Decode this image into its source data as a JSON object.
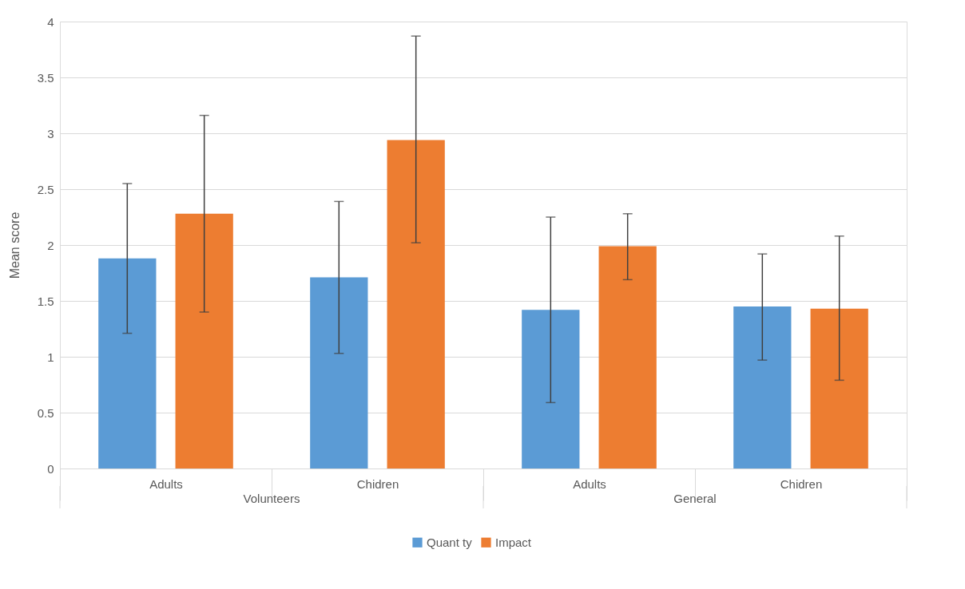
{
  "chart_data": {
    "type": "bar",
    "ylabel": "Mean score",
    "categories": [
      "Adults",
      "Chidren",
      "Adults",
      "Chidren"
    ],
    "annotations": [
      "Volunteers",
      "General"
    ],
    "series": [
      {
        "name": "Quant ty",
        "color": "#5b9bd5",
        "values": [
          1.88,
          1.71,
          1.42,
          1.45
        ],
        "errors": [
          [
            1.21,
            2.55
          ],
          [
            1.03,
            2.39
          ],
          [
            0.59,
            2.25
          ],
          [
            0.97,
            1.92
          ]
        ]
      },
      {
        "name": "Impact",
        "color": "#ed7d31",
        "values": [
          2.28,
          2.94,
          1.99,
          1.43
        ],
        "errors": [
          [
            1.4,
            3.16
          ],
          [
            2.02,
            3.87
          ],
          [
            1.69,
            2.28
          ],
          [
            0.79,
            2.08
          ]
        ]
      }
    ],
    "ylim": [
      0,
      4
    ],
    "yticks": [
      0,
      0.5,
      1,
      1.5,
      2,
      2.5,
      3,
      3.5,
      4
    ],
    "grid": "y",
    "legend": "bottom"
  }
}
